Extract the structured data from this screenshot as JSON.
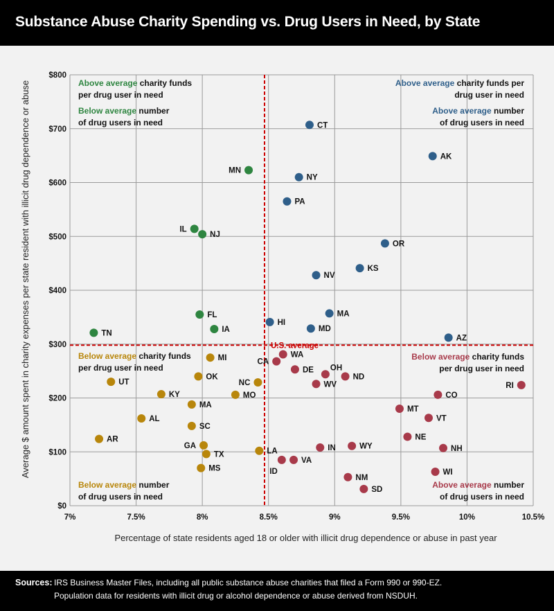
{
  "header": {
    "title": "Substance Abuse Charity Spending vs. Drug Users in Need, by State"
  },
  "sources": {
    "label": "Sources:",
    "line1": "IRS Business Master Files, including all public substance abuse charities that filed a Form 990 or 990-EZ.",
    "line2": "Population data for residents with illicit drug or alcohol dependence or abuse derived from NSDUH."
  },
  "colors": {
    "green": "#2e8540",
    "blue": "#2f5f8a",
    "gold": "#b8860b",
    "red": "#a83a4a",
    "average_line": "#cc0000",
    "grid": "#9a9a9a"
  },
  "chart_data": {
    "type": "scatter",
    "xlabel": "Percentage of state residents aged 18 or older with illicit drug dependence or abuse in past year",
    "ylabel": "Average $ amount spent in charity expenses per state resident with illicit drug dependence or abuse",
    "xlim": [
      7,
      10.5
    ],
    "ylim": [
      0,
      800
    ],
    "x_ticks": [
      7,
      7.5,
      8,
      8.5,
      9,
      9.5,
      10,
      10.5
    ],
    "x_tick_labels": [
      "7%",
      "7.5%",
      "8%",
      "8.5%",
      "9%",
      "9.5%",
      "10%",
      "10.5%"
    ],
    "y_ticks": [
      0,
      100,
      200,
      300,
      400,
      500,
      600,
      700,
      800
    ],
    "y_tick_labels": [
      "$0",
      "$100",
      "$200",
      "$300",
      "$400",
      "$500",
      "$600",
      "$700",
      "$800"
    ],
    "grid": true,
    "us_average": {
      "label": "U.S. average",
      "x": 8.47,
      "y": 298
    },
    "quadrant_notes": {
      "top_left": {
        "line1": {
          "hl": "Above average",
          "rest": " charity funds"
        },
        "line2": "per drug user in need",
        "line3": {
          "hl": "Below average",
          "rest": " number"
        },
        "line4": "of drug users in need"
      },
      "top_right": {
        "line1": {
          "hl": "Above average",
          "rest": " charity funds per"
        },
        "line2": "drug user in need",
        "line3": {
          "hl": "Above average",
          "rest": " number"
        },
        "line4": "of drug users in need"
      },
      "mid_left": {
        "line1": {
          "hl": "Below average",
          "rest": " charity funds"
        },
        "line2": "per drug user in need"
      },
      "mid_right": {
        "line1": {
          "hl": "Below average",
          "rest": " charity funds"
        },
        "line2": "per drug user in need"
      },
      "bottom_left": {
        "line1": {
          "hl": "Below average",
          "rest": " number"
        },
        "line2": "of drug users in need"
      },
      "bottom_right": {
        "line1": {
          "hl": "Above average",
          "rest": " number"
        },
        "line2": "of drug users in need"
      }
    },
    "points": [
      {
        "state": "CT",
        "x": 8.81,
        "y": 707,
        "group": "blue",
        "lp": "right"
      },
      {
        "state": "AK",
        "x": 9.74,
        "y": 649,
        "group": "blue",
        "lp": "right"
      },
      {
        "state": "NY",
        "x": 8.73,
        "y": 610,
        "group": "blue",
        "lp": "right"
      },
      {
        "state": "PA",
        "x": 8.64,
        "y": 565,
        "group": "blue",
        "lp": "right"
      },
      {
        "state": "OR",
        "x": 9.38,
        "y": 487,
        "group": "blue",
        "lp": "right"
      },
      {
        "state": "KS",
        "x": 9.19,
        "y": 441,
        "group": "blue",
        "lp": "right"
      },
      {
        "state": "NV",
        "x": 8.86,
        "y": 428,
        "group": "blue",
        "lp": "right"
      },
      {
        "state": "MA",
        "x": 8.96,
        "y": 357,
        "group": "blue",
        "lp": "right"
      },
      {
        "state": "HI",
        "x": 8.51,
        "y": 341,
        "group": "blue",
        "lp": "right"
      },
      {
        "state": "MD",
        "x": 8.82,
        "y": 329,
        "group": "blue",
        "lp": "right"
      },
      {
        "state": "AZ",
        "x": 9.86,
        "y": 312,
        "group": "blue",
        "lp": "right"
      },
      {
        "state": "MN",
        "x": 8.35,
        "y": 623,
        "group": "green",
        "lp": "left"
      },
      {
        "state": "IL",
        "x": 7.94,
        "y": 514,
        "group": "green",
        "lp": "left"
      },
      {
        "state": "NJ",
        "x": 8.0,
        "y": 504,
        "group": "green",
        "lp": "right"
      },
      {
        "state": "FL",
        "x": 7.98,
        "y": 355,
        "group": "green",
        "lp": "right"
      },
      {
        "state": "IA",
        "x": 8.09,
        "y": 328,
        "group": "green",
        "lp": "right"
      },
      {
        "state": "TN",
        "x": 7.18,
        "y": 321,
        "group": "green",
        "lp": "right"
      },
      {
        "state": "MI",
        "x": 8.06,
        "y": 275,
        "group": "gold",
        "lp": "right"
      },
      {
        "state": "OK",
        "x": 7.97,
        "y": 240,
        "group": "gold",
        "lp": "right"
      },
      {
        "state": "UT",
        "x": 7.31,
        "y": 230,
        "group": "gold",
        "lp": "right"
      },
      {
        "state": "NC",
        "x": 8.42,
        "y": 229,
        "group": "gold",
        "lp": "left"
      },
      {
        "state": "KY",
        "x": 7.69,
        "y": 207,
        "group": "gold",
        "lp": "right"
      },
      {
        "state": "MO",
        "x": 8.25,
        "y": 206,
        "group": "gold",
        "lp": "right"
      },
      {
        "state": "MA",
        "x": 7.92,
        "y": 188,
        "group": "gold",
        "lp": "right"
      },
      {
        "state": "AL",
        "x": 7.54,
        "y": 162,
        "group": "gold",
        "lp": "right"
      },
      {
        "state": "SC",
        "x": 7.92,
        "y": 148,
        "group": "gold",
        "lp": "right"
      },
      {
        "state": "AR",
        "x": 7.22,
        "y": 124,
        "group": "gold",
        "lp": "right"
      },
      {
        "state": "GA",
        "x": 8.01,
        "y": 112,
        "group": "gold",
        "lp": "left"
      },
      {
        "state": "LA",
        "x": 8.43,
        "y": 102,
        "group": "gold",
        "lp": "right"
      },
      {
        "state": "TX",
        "x": 8.03,
        "y": 96,
        "group": "gold",
        "lp": "right"
      },
      {
        "state": "MS",
        "x": 7.99,
        "y": 70,
        "group": "gold",
        "lp": "right"
      },
      {
        "state": "WA",
        "x": 8.61,
        "y": 281,
        "group": "red",
        "lp": "right"
      },
      {
        "state": "CA",
        "x": 8.56,
        "y": 268,
        "group": "red",
        "lp": "left"
      },
      {
        "state": "DE",
        "x": 8.7,
        "y": 253,
        "group": "red",
        "lp": "right"
      },
      {
        "state": "OH",
        "x": 8.93,
        "y": 244,
        "group": "red",
        "lp": "upright"
      },
      {
        "state": "ND",
        "x": 9.08,
        "y": 240,
        "group": "red",
        "lp": "right"
      },
      {
        "state": "WV",
        "x": 8.86,
        "y": 226,
        "group": "red",
        "lp": "right"
      },
      {
        "state": "RI",
        "x": 10.41,
        "y": 224,
        "group": "red",
        "lp": "left"
      },
      {
        "state": "CO",
        "x": 9.78,
        "y": 206,
        "group": "red",
        "lp": "right"
      },
      {
        "state": "MT",
        "x": 9.49,
        "y": 180,
        "group": "red",
        "lp": "right"
      },
      {
        "state": "VT",
        "x": 9.71,
        "y": 163,
        "group": "red",
        "lp": "right"
      },
      {
        "state": "NE",
        "x": 9.55,
        "y": 128,
        "group": "red",
        "lp": "right"
      },
      {
        "state": "IN",
        "x": 8.89,
        "y": 108,
        "group": "red",
        "lp": "right"
      },
      {
        "state": "WY",
        "x": 9.13,
        "y": 111,
        "group": "red",
        "lp": "right"
      },
      {
        "state": "NH",
        "x": 9.82,
        "y": 107,
        "group": "red",
        "lp": "right"
      },
      {
        "state": "ID",
        "x": 8.6,
        "y": 85,
        "group": "red",
        "lp": "belowleft"
      },
      {
        "state": "VA",
        "x": 8.69,
        "y": 85,
        "group": "red",
        "lp": "right"
      },
      {
        "state": "WI",
        "x": 9.76,
        "y": 63,
        "group": "red",
        "lp": "right"
      },
      {
        "state": "NM",
        "x": 9.1,
        "y": 53,
        "group": "red",
        "lp": "right"
      },
      {
        "state": "SD",
        "x": 9.22,
        "y": 31,
        "group": "red",
        "lp": "right"
      }
    ]
  }
}
